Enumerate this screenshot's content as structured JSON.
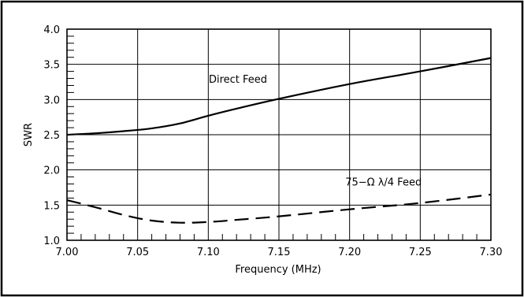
{
  "chart_data": {
    "type": "line",
    "xlabel": "Frequency (MHz)",
    "ylabel": "SWR",
    "xlim": [
      7.0,
      7.3
    ],
    "ylim": [
      1.0,
      4.0
    ],
    "grid": true,
    "x_ticks": [
      "7.00",
      "7.05",
      "7.10",
      "7.15",
      "7.20",
      "7.25",
      "7.30"
    ],
    "y_ticks": [
      "1.0",
      "1.5",
      "2.0",
      "2.5",
      "3.0",
      "3.5",
      "4.0"
    ],
    "series": [
      {
        "name": "Direct Feed",
        "style": "solid",
        "x": [
          7.0,
          7.02,
          7.04,
          7.06,
          7.08,
          7.1,
          7.12,
          7.15,
          7.2,
          7.25,
          7.3
        ],
        "y": [
          2.5,
          2.52,
          2.55,
          2.59,
          2.66,
          2.77,
          2.87,
          3.01,
          3.22,
          3.4,
          3.59
        ]
      },
      {
        "name": "75-Ω λ/4 Feed",
        "style": "dashed",
        "x": [
          7.0,
          7.02,
          7.04,
          7.06,
          7.08,
          7.1,
          7.12,
          7.15,
          7.2,
          7.25,
          7.3
        ],
        "y": [
          1.57,
          1.47,
          1.36,
          1.28,
          1.25,
          1.26,
          1.29,
          1.34,
          1.44,
          1.53,
          1.65
        ]
      }
    ],
    "annotations": [
      {
        "text": "Direct Feed",
        "x": 7.121,
        "y": 3.24
      },
      {
        "text": "75−Ω λ/4 Feed",
        "x": 7.224,
        "y": 1.78
      }
    ]
  }
}
